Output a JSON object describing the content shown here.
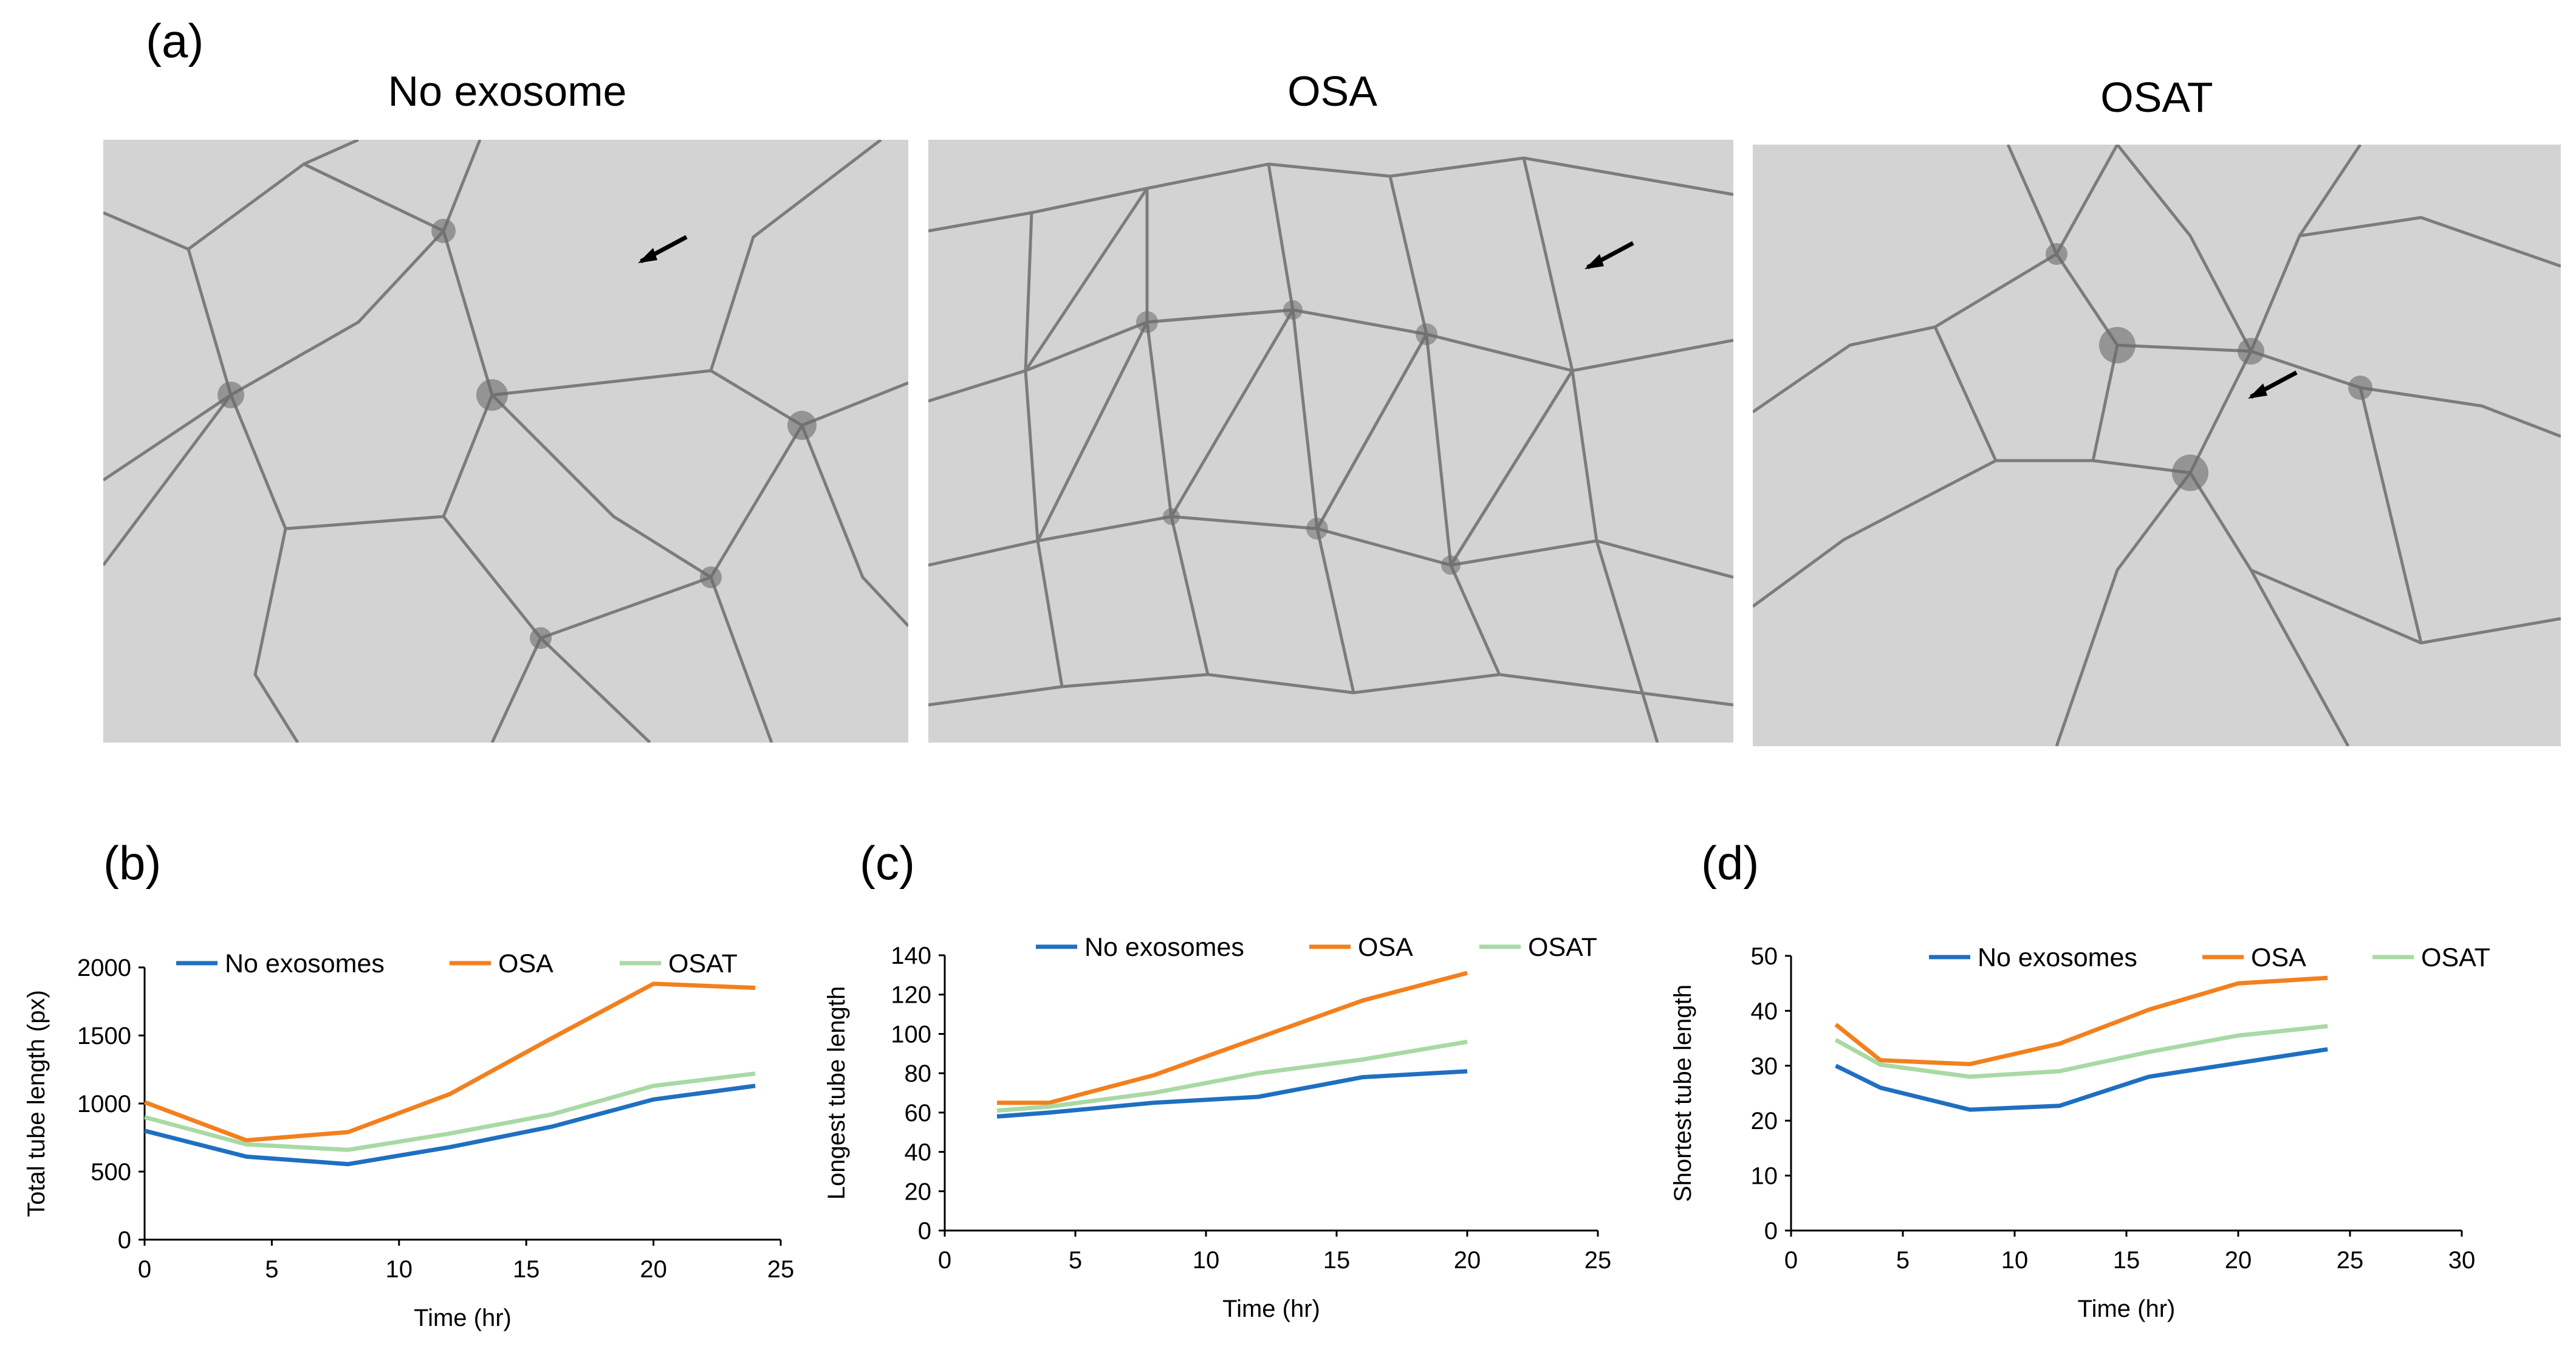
{
  "panels": {
    "a": "(a)",
    "b": "(b)",
    "c": "(c)",
    "d": "(d)"
  },
  "images": [
    {
      "title": "No exosome"
    },
    {
      "title": "OSA"
    },
    {
      "title": "OSAT"
    }
  ],
  "colors": {
    "no_exosomes": "#1f6fc1",
    "osa": "#f2801e",
    "osat": "#a9d9a4"
  },
  "chart_data": [
    {
      "type": "line",
      "panel": "(b)",
      "xlabel": "Time (hr)",
      "ylabel": "Total tube length  (px)",
      "xlim": [
        0,
        25
      ],
      "ylim": [
        0,
        2000
      ],
      "xticks": [
        0,
        5,
        10,
        15,
        20,
        25
      ],
      "yticks": [
        0,
        500,
        1000,
        1500,
        2000
      ],
      "legend_position": "top",
      "x": [
        0,
        4,
        8,
        12,
        16,
        20,
        24
      ],
      "series": [
        {
          "name": "No exosomes",
          "values": [
            800,
            610,
            555,
            680,
            830,
            1030,
            1130
          ]
        },
        {
          "name": "OSA",
          "values": [
            1010,
            730,
            790,
            1070,
            1480,
            1880,
            1850
          ]
        },
        {
          "name": "OSAT",
          "values": [
            900,
            700,
            660,
            780,
            920,
            1130,
            1220
          ]
        }
      ]
    },
    {
      "type": "line",
      "panel": "(c)",
      "xlabel": "Time (hr)",
      "ylabel": "Longest tube length",
      "xlim": [
        0,
        25
      ],
      "ylim": [
        0,
        140
      ],
      "xticks": [
        0,
        5,
        10,
        15,
        20,
        25
      ],
      "yticks": [
        0,
        20,
        40,
        60,
        80,
        100,
        120,
        140
      ],
      "legend_position": "top",
      "x": [
        2,
        4,
        8,
        12,
        16,
        20
      ],
      "series": [
        {
          "name": "No exosomes",
          "values": [
            58,
            60,
            65,
            68,
            78,
            81
          ]
        },
        {
          "name": "OSA",
          "values": [
            65,
            65,
            79,
            98,
            117,
            131
          ]
        },
        {
          "name": "OSAT",
          "values": [
            61,
            63,
            70,
            80,
            87,
            96
          ]
        }
      ]
    },
    {
      "type": "line",
      "panel": "(d)",
      "xlabel": "Time (hr)",
      "ylabel": "Shortest tube length",
      "xlim": [
        0,
        30
      ],
      "ylim": [
        0,
        50
      ],
      "xticks": [
        0,
        5,
        10,
        15,
        20,
        25,
        30
      ],
      "yticks": [
        0,
        10,
        20,
        30,
        40,
        50
      ],
      "legend_position": "top",
      "x": [
        2,
        4,
        8,
        12,
        16,
        20,
        24
      ],
      "series": [
        {
          "name": "No exosomes",
          "values": [
            30,
            26,
            22,
            22.7,
            28,
            30.5,
            33
          ]
        },
        {
          "name": "OSA",
          "values": [
            37.5,
            31,
            30.3,
            34,
            40.2,
            45,
            46
          ]
        },
        {
          "name": "OSAT",
          "values": [
            34.7,
            30.2,
            28,
            29,
            32.5,
            35.5,
            37.2
          ]
        }
      ]
    }
  ]
}
